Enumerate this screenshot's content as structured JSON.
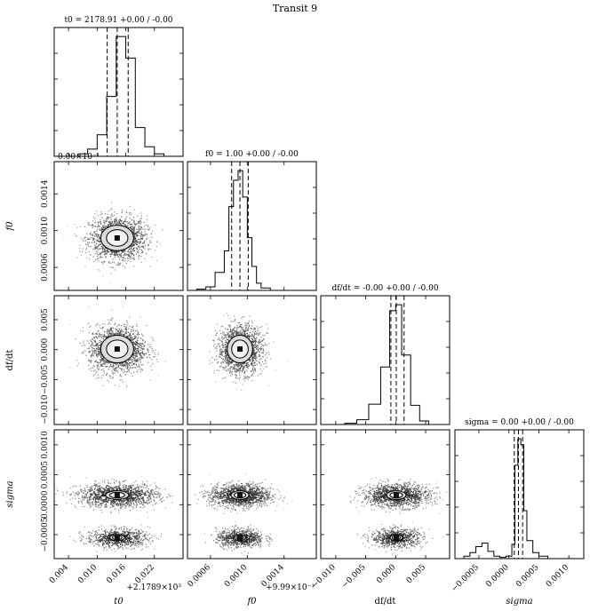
{
  "chart_data": {
    "type": "corner",
    "suptitle": "Transit 9",
    "parameters": [
      "t0",
      "f0",
      "df/dt",
      "sigma"
    ],
    "axis_labels": [
      "t0",
      "f0",
      "df/dt",
      "sigma"
    ],
    "column_titles": [
      "t0 = 2178.91 +0.00 / -0.00",
      "f0 = 1.00 +0.00 / -0.00",
      "df/dt = -0.00 +0.00 / -0.00",
      "sigma = 0.00 +0.00 / -0.00"
    ],
    "axis_offsets": {
      "t0": "+2.1789×10³",
      "f0": "+9.99×10⁻¹"
    },
    "overlapping_text": "0.00×10⁻¹",
    "x_ticks": [
      {
        "values": [
          0.004,
          0.01,
          0.016,
          0.022
        ],
        "labels": [
          "0.004",
          "0.010",
          "0.016",
          "0.022"
        ]
      },
      {
        "values": [
          0.0006,
          0.001,
          0.0014
        ],
        "labels": [
          "0.0006",
          "0.0010",
          "0.0014"
        ]
      },
      {
        "values": [
          -0.01,
          -0.005,
          0.0,
          0.005
        ],
        "labels": [
          "−0.010",
          "−0.005",
          "0.000",
          "0.005"
        ]
      },
      {
        "values": [
          -0.0005,
          0.0,
          0.0005,
          0.001
        ],
        "labels": [
          "−0.0005",
          "0.0000",
          "0.0005",
          "0.0010"
        ]
      }
    ],
    "y_ticks": [
      null,
      {
        "values": [
          0.0006,
          0.001,
          0.0014
        ],
        "labels": [
          "0.0006",
          "0.0010",
          "0.0014"
        ]
      },
      {
        "values": [
          -0.01,
          -0.005,
          0.0,
          0.005
        ],
        "labels": [
          "−0.010",
          "−0.005",
          "0.000",
          "0.005"
        ]
      },
      {
        "values": [
          -0.0005,
          0.0,
          0.0005,
          0.001
        ],
        "labels": [
          "−0.0005",
          "0.0000",
          "0.0005",
          "0.0010"
        ]
      }
    ],
    "ranges": [
      [
        0.001,
        0.028
      ],
      [
        0.00035,
        0.00175
      ],
      [
        -0.0125,
        0.009
      ],
      [
        -0.0009,
        0.00125
      ]
    ],
    "medians": [
      0.0142,
      0.00092,
      0.0001,
      0.00016
    ],
    "quantiles": [
      [
        0.0121,
        0.0142,
        0.0165
      ],
      [
        0.00083,
        0.00092,
        0.00101
      ],
      [
        -0.0008,
        0.0001,
        0.0014
      ],
      [
        9e-05,
        0.00016,
        0.00023
      ]
    ],
    "histograms": [
      {
        "edges": [
          0.006,
          0.008,
          0.01,
          0.012,
          0.014,
          0.016,
          0.018,
          0.02,
          0.022,
          0.024,
          0.026
        ],
        "counts": [
          0.02,
          0.06,
          0.18,
          0.5,
          1.0,
          0.82,
          0.24,
          0.08,
          0.02,
          0.0
        ]
      },
      {
        "edges": [
          0.00045,
          0.00055,
          0.00065,
          0.00075,
          0.0008,
          0.00085,
          0.0009,
          0.00095,
          0.001,
          0.00105,
          0.0011,
          0.00115,
          0.00125,
          0.00135,
          0.00145
        ],
        "counts": [
          0.01,
          0.03,
          0.15,
          0.33,
          0.7,
          0.92,
          1.0,
          0.78,
          0.44,
          0.2,
          0.06,
          0.02,
          0.0,
          0.0
        ]
      },
      {
        "edges": [
          -0.0085,
          -0.0065,
          -0.0045,
          -0.0025,
          -0.001,
          0.0,
          0.001,
          0.0025,
          0.004,
          0.0055,
          0.0075
        ],
        "counts": [
          0.01,
          0.04,
          0.17,
          0.48,
          0.95,
          1.0,
          0.58,
          0.16,
          0.03,
          0.0
        ]
      },
      {
        "edges": [
          -0.00075,
          -0.00065,
          -0.00055,
          -0.00045,
          -0.00035,
          -0.00025,
          -0.00015,
          -5e-05,
          5e-05,
          0.0001,
          0.00015,
          0.0002,
          0.00025,
          0.0003,
          0.0004,
          0.0005,
          0.00065,
          0.0008
        ],
        "counts": [
          0.02,
          0.05,
          0.1,
          0.13,
          0.06,
          0.02,
          0.01,
          0.02,
          0.12,
          0.78,
          1.0,
          0.95,
          0.4,
          0.15,
          0.05,
          0.02,
          0.0
        ]
      }
    ],
    "scatter": {
      "centers": [
        0.0142,
        0.00092,
        0.0001
      ],
      "spreads": [
        0.003,
        0.00012,
        0.002
      ],
      "sigma_mode_upper": 0.00016,
      "sigma_mode_lower": -0.00055,
      "sigma_spread": 0.00018
    }
  }
}
